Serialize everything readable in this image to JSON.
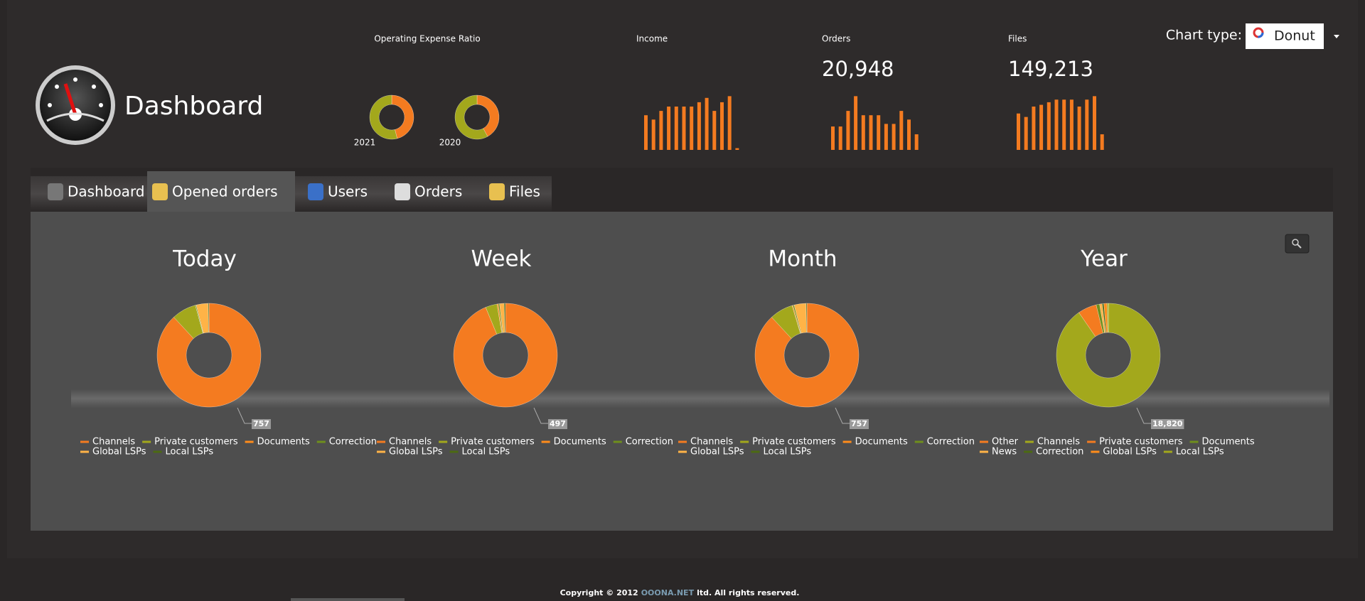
{
  "header": {
    "title": "Dashboard",
    "chart_type_label": "Chart type:",
    "chart_type_value": "Donut"
  },
  "kpis": {
    "expense": {
      "title": "Operating Expense Ratio",
      "colors": [
        "#f47b20",
        "#a3a81c"
      ],
      "donuts": [
        {
          "label": "2021",
          "values": [
            46,
            54
          ]
        },
        {
          "label": "2020",
          "values": [
            42,
            58
          ]
        }
      ]
    },
    "income": {
      "title": "Income",
      "color": "#f47b20",
      "bars": [
        40,
        35,
        45,
        50,
        50,
        50,
        50,
        55,
        60,
        45,
        55,
        62,
        2
      ]
    },
    "orders": {
      "title": "Orders",
      "value": "20,948",
      "color": "#f47b20",
      "bars": [
        27,
        27,
        45,
        62,
        40,
        40,
        40,
        30,
        30,
        45,
        35,
        18
      ]
    },
    "files": {
      "title": "Files",
      "value": "149,213",
      "color": "#f47b20",
      "bars": [
        42,
        38,
        50,
        52,
        55,
        58,
        58,
        58,
        50,
        58,
        62,
        18
      ]
    }
  },
  "tabs": {
    "active": 1,
    "items": [
      "Dashboard",
      "Opened orders",
      "Users",
      "Orders",
      "Files"
    ]
  },
  "donuts": [
    {
      "title": "Today",
      "total": "757",
      "series": [
        {
          "name": "Channels",
          "color": "#f47b20",
          "value": 667
        },
        {
          "name": "Private customers",
          "color": "#a3a81c",
          "value": 58
        },
        {
          "name": "Documents",
          "color": "#ff8c1a",
          "value": 0
        },
        {
          "name": "Correction",
          "color": "#6f8f1c",
          "value": 2
        },
        {
          "name": "Global LSPs",
          "color": "#ffb347",
          "value": 28
        },
        {
          "name": "Local LSPs",
          "color": "#4c6a12",
          "value": 2
        }
      ]
    },
    {
      "title": "Week",
      "total": "497",
      "series": [
        {
          "name": "Channels",
          "color": "#f47b20",
          "value": 466
        },
        {
          "name": "Private customers",
          "color": "#a3a81c",
          "value": 18
        },
        {
          "name": "Documents",
          "color": "#ff8c1a",
          "value": 2
        },
        {
          "name": "Correction",
          "color": "#6f8f1c",
          "value": 2
        },
        {
          "name": "Global LSPs",
          "color": "#ffb347",
          "value": 7
        },
        {
          "name": "Local LSPs",
          "color": "#4c6a12",
          "value": 2
        }
      ]
    },
    {
      "title": "Month",
      "total": "757",
      "series": [
        {
          "name": "Channels",
          "color": "#f47b20",
          "value": 667
        },
        {
          "name": "Private customers",
          "color": "#a3a81c",
          "value": 55
        },
        {
          "name": "Documents",
          "color": "#ff8c1a",
          "value": 2
        },
        {
          "name": "Correction",
          "color": "#6f8f1c",
          "value": 3
        },
        {
          "name": "Global LSPs",
          "color": "#ffb347",
          "value": 28
        },
        {
          "name": "Local LSPs",
          "color": "#4c6a12",
          "value": 2
        }
      ]
    },
    {
      "title": "Year",
      "total": "18,820",
      "series": [
        {
          "name": "Other",
          "color": "#f47b20",
          "value": 10
        },
        {
          "name": "Channels",
          "color": "#a3a81c",
          "value": 17000
        },
        {
          "name": "Private customers",
          "color": "#f47b20",
          "value": 1100
        },
        {
          "name": "Documents",
          "color": "#6f8f1c",
          "value": 200
        },
        {
          "name": "News",
          "color": "#ffb347",
          "value": 150
        },
        {
          "name": "Correction",
          "color": "#4c6a12",
          "value": 100
        },
        {
          "name": "Global LSPs",
          "color": "#ff8c1a",
          "value": 180
        },
        {
          "name": "Local LSPs",
          "color": "#a3a81c",
          "value": 80
        }
      ]
    }
  ],
  "footer": {
    "prefix": "Copyright © 2012",
    "brand": "OOONA.NET",
    "suffix": "ltd. All rights reserved."
  }
}
